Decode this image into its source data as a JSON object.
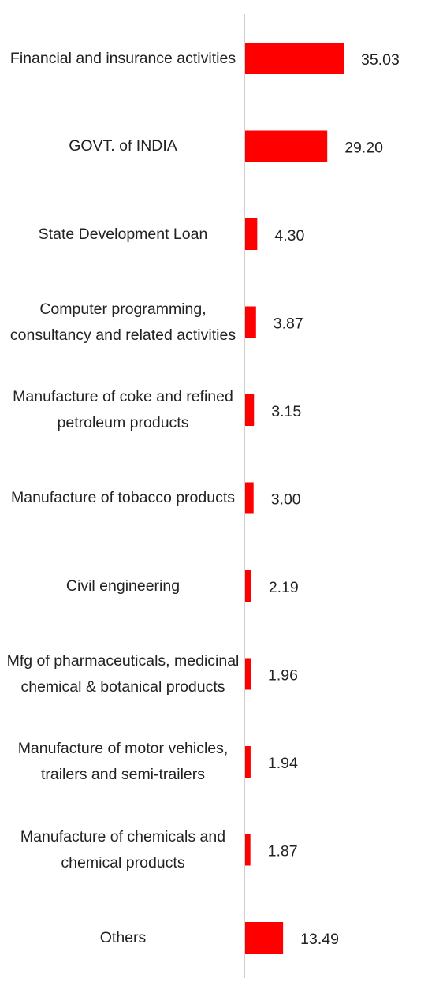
{
  "chart_data": {
    "type": "hbar",
    "categories": [
      "Financial and insurance activities",
      "GOVT. of INDIA",
      "State Development Loan",
      "Computer programming, consultancy and related activities",
      "Manufacture of coke and refined petroleum products",
      "Manufacture of tobacco products",
      "Civil engineering",
      "Mfg of pharmaceuticals, medicinal chemical & botanical products",
      "Manufacture of motor vehicles, trailers and semi-trailers",
      "Manufacture of chemicals and chemical products",
      "Others"
    ],
    "values": [
      35.03,
      29.2,
      4.3,
      3.87,
      3.15,
      3.0,
      2.19,
      1.96,
      1.94,
      1.87,
      13.49
    ],
    "value_labels": [
      "35.03",
      "29.20",
      "4.30",
      "3.87",
      "3.15",
      "3.00",
      "2.19",
      "1.96",
      "1.94",
      "1.87",
      "13.49"
    ],
    "color": "#ff0000"
  }
}
